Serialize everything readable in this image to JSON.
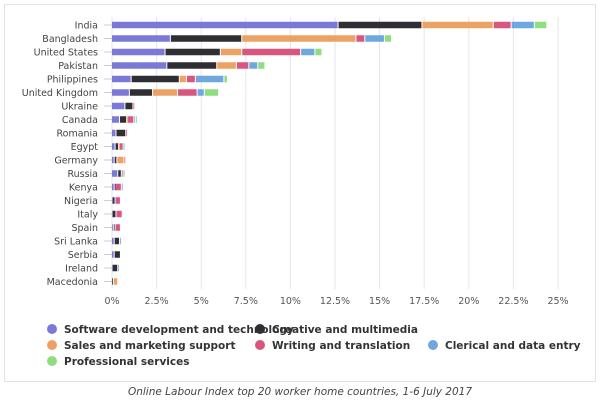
{
  "chart_data": {
    "type": "bar",
    "orientation": "horizontal",
    "stacked": true,
    "categories": [
      "India",
      "Bangladesh",
      "United States",
      "Pakistan",
      "Philippines",
      "United Kingdom",
      "Ukraine",
      "Canada",
      "Romania",
      "Egypt",
      "Germany",
      "Russia",
      "Kenya",
      "Nigeria",
      "Italy",
      "Spain",
      "Sri Lanka",
      "Serbia",
      "Ireland",
      "Macedonia"
    ],
    "xlim": [
      0,
      25
    ],
    "xticks": [
      "0%",
      "2.5%",
      "5%",
      "7.5%",
      "10%",
      "12.5%",
      "15%",
      "17.5%",
      "20%",
      "22.5%",
      "25%"
    ],
    "grid": true,
    "legend_position": "bottom",
    "series": [
      {
        "name": "Software development and technology",
        "color": "#7b79d6",
        "values": [
          12.7,
          3.3,
          3.0,
          3.1,
          1.1,
          1.0,
          0.75,
          0.45,
          0.25,
          0.2,
          0.15,
          0.35,
          0.15,
          0.05,
          0.05,
          0.1,
          0.15,
          0.15,
          0.05,
          0.0
        ]
      },
      {
        "name": "Creative and multimedia",
        "color": "#2e2e33",
        "values": [
          4.7,
          4.0,
          3.1,
          2.8,
          2.7,
          1.3,
          0.45,
          0.4,
          0.55,
          0.2,
          0.15,
          0.2,
          0.05,
          0.15,
          0.2,
          0.1,
          0.3,
          0.35,
          0.3,
          0.1
        ]
      },
      {
        "name": "Sales and marketing support",
        "color": "#eda265",
        "values": [
          4.0,
          6.4,
          1.2,
          1.1,
          0.4,
          1.4,
          0.0,
          0.05,
          0.0,
          0.05,
          0.4,
          0.0,
          0.0,
          0.0,
          0.0,
          0.0,
          0.0,
          0.0,
          0.0,
          0.25
        ]
      },
      {
        "name": "Writing and translation",
        "color": "#d9577f",
        "values": [
          1.0,
          0.5,
          3.3,
          0.7,
          0.5,
          1.1,
          0.1,
          0.35,
          0.1,
          0.2,
          0.05,
          0.1,
          0.35,
          0.3,
          0.35,
          0.3,
          0.0,
          0.0,
          0.0,
          0.0
        ]
      },
      {
        "name": "Clerical and data entry",
        "color": "#6fa8df",
        "values": [
          1.3,
          1.1,
          0.8,
          0.5,
          1.6,
          0.4,
          0.0,
          0.1,
          0.0,
          0.05,
          0.0,
          0.05,
          0.05,
          0.0,
          0.0,
          0.0,
          0.1,
          0.0,
          0.05,
          0.0
        ]
      },
      {
        "name": "Professional services",
        "color": "#8fdd7e",
        "values": [
          0.7,
          0.4,
          0.4,
          0.4,
          0.2,
          0.8,
          0.0,
          0.05,
          0.0,
          0.0,
          0.0,
          0.0,
          0.0,
          0.0,
          0.0,
          0.0,
          0.0,
          0.0,
          0.0,
          0.0
        ]
      }
    ]
  },
  "caption": "Online Labour Index top 20 worker home countries, 1-6 July 2017"
}
